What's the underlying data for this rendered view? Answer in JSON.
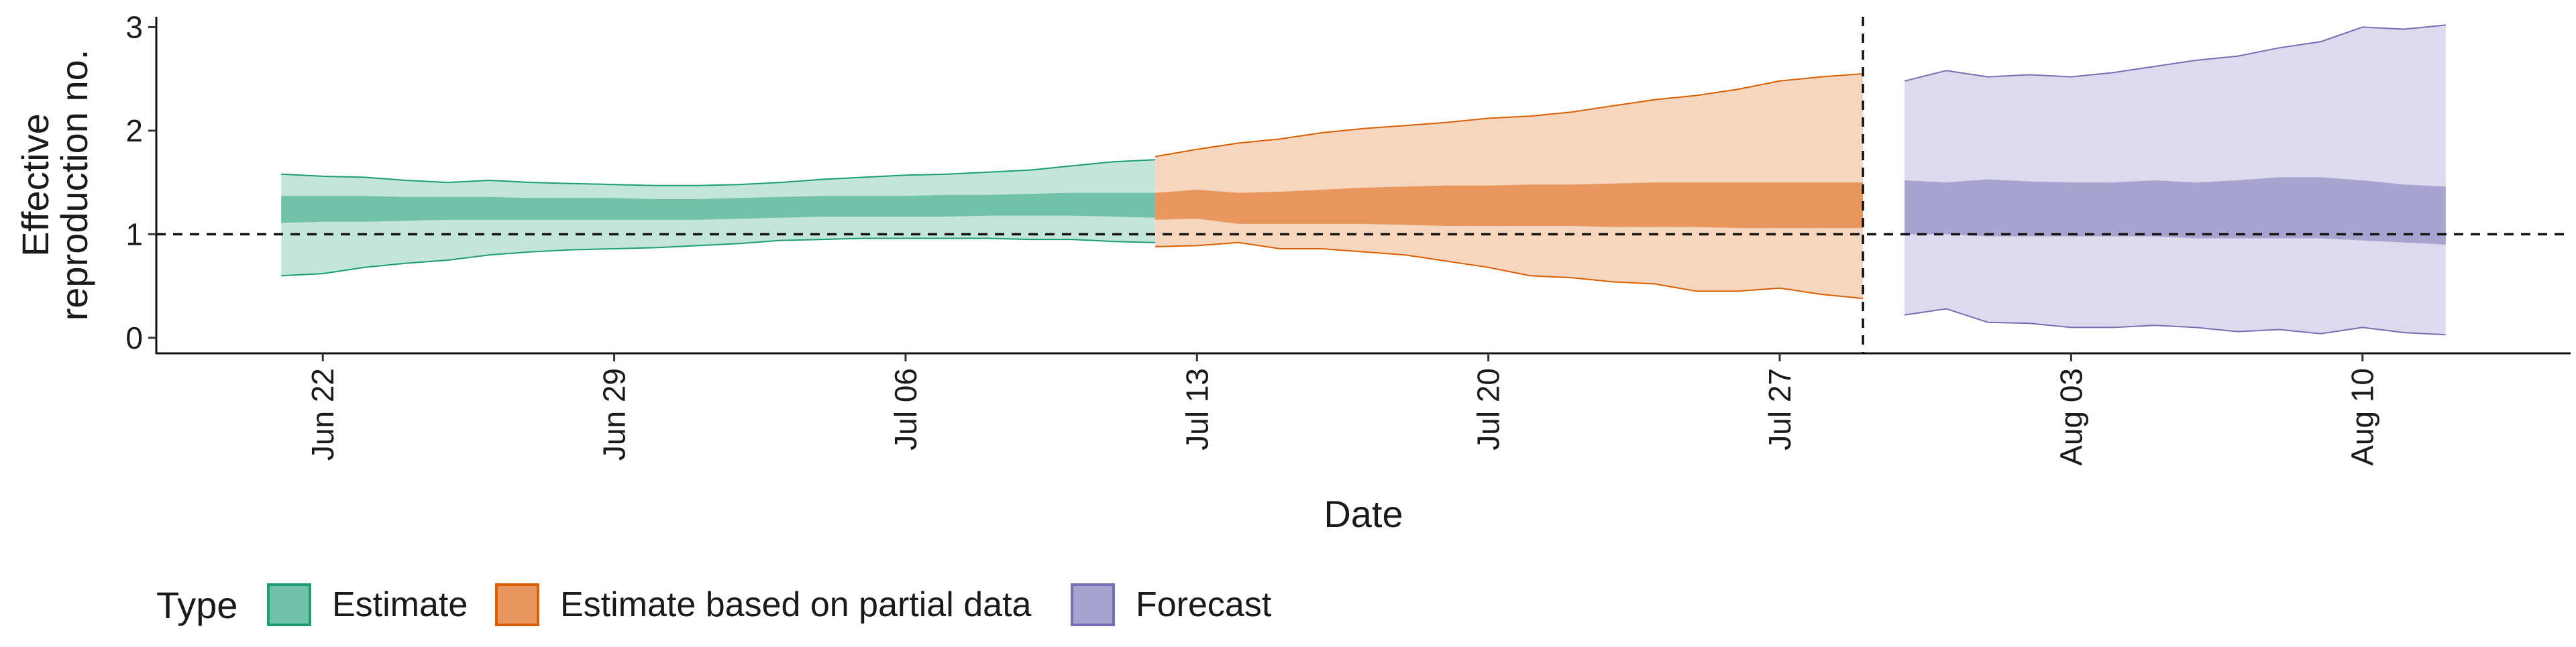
{
  "chart_data": {
    "type": "area",
    "xlabel": "Date",
    "ylabel_lines": [
      "Effective",
      "reproduction no."
    ],
    "ylim": [
      -0.15,
      3.1
    ],
    "yticks": [
      0,
      1,
      2,
      3
    ],
    "xlim": [
      "2020-06-18",
      "2020-08-15"
    ],
    "xticks": [
      "2020-06-22",
      "2020-06-29",
      "2020-07-06",
      "2020-07-13",
      "2020-07-20",
      "2020-07-27",
      "2020-08-03",
      "2020-08-10"
    ],
    "xtick_labels": [
      "Jun 22",
      "Jun 29",
      "Jul 06",
      "Jul 13",
      "Jul 20",
      "Jul 27",
      "Aug 03",
      "Aug 10"
    ],
    "reference_line_y": 1,
    "divider_date": "2020-07-29",
    "grid": false,
    "legend": {
      "title": "Type",
      "placement": "bottom-left",
      "items": [
        "Estimate",
        "Estimate based on partial data",
        "Forecast"
      ]
    },
    "series": [
      {
        "name": "Estimate",
        "color": "#1b9e77",
        "outer_fill": "#c4e5da",
        "inner_fill": "#72c2a9",
        "x": [
          "2020-06-21",
          "2020-06-22",
          "2020-06-23",
          "2020-06-24",
          "2020-06-25",
          "2020-06-26",
          "2020-06-27",
          "2020-06-28",
          "2020-06-29",
          "2020-06-30",
          "2020-07-01",
          "2020-07-02",
          "2020-07-03",
          "2020-07-04",
          "2020-07-05",
          "2020-07-06",
          "2020-07-07",
          "2020-07-08",
          "2020-07-09",
          "2020-07-10",
          "2020-07-11",
          "2020-07-12"
        ],
        "outer_low": [
          0.6,
          0.62,
          0.68,
          0.72,
          0.75,
          0.8,
          0.83,
          0.85,
          0.86,
          0.87,
          0.89,
          0.91,
          0.94,
          0.95,
          0.96,
          0.96,
          0.96,
          0.96,
          0.95,
          0.95,
          0.93,
          0.92
        ],
        "outer_high": [
          1.58,
          1.56,
          1.55,
          1.52,
          1.5,
          1.52,
          1.5,
          1.49,
          1.48,
          1.47,
          1.47,
          1.48,
          1.5,
          1.53,
          1.55,
          1.57,
          1.58,
          1.6,
          1.62,
          1.66,
          1.7,
          1.72
        ],
        "inner_low": [
          1.11,
          1.12,
          1.12,
          1.13,
          1.14,
          1.14,
          1.14,
          1.14,
          1.14,
          1.14,
          1.14,
          1.15,
          1.16,
          1.17,
          1.17,
          1.17,
          1.17,
          1.18,
          1.18,
          1.18,
          1.17,
          1.16
        ],
        "inner_high": [
          1.37,
          1.37,
          1.37,
          1.36,
          1.36,
          1.36,
          1.35,
          1.35,
          1.35,
          1.34,
          1.34,
          1.35,
          1.36,
          1.37,
          1.37,
          1.37,
          1.38,
          1.38,
          1.39,
          1.4,
          1.4,
          1.4
        ]
      },
      {
        "name": "Estimate based on partial data",
        "color": "#d95f02",
        "outer_fill": "#f6d6bf",
        "inner_fill": "#e8985f",
        "x": [
          "2020-07-12",
          "2020-07-13",
          "2020-07-14",
          "2020-07-15",
          "2020-07-16",
          "2020-07-17",
          "2020-07-18",
          "2020-07-19",
          "2020-07-20",
          "2020-07-21",
          "2020-07-22",
          "2020-07-23",
          "2020-07-24",
          "2020-07-25",
          "2020-07-26",
          "2020-07-27",
          "2020-07-28",
          "2020-07-29"
        ],
        "outer_low": [
          0.88,
          0.89,
          0.92,
          0.86,
          0.86,
          0.83,
          0.8,
          0.74,
          0.68,
          0.6,
          0.58,
          0.54,
          0.52,
          0.45,
          0.45,
          0.48,
          0.42,
          0.38
        ],
        "outer_high": [
          1.75,
          1.82,
          1.88,
          1.92,
          1.98,
          2.02,
          2.05,
          2.08,
          2.12,
          2.14,
          2.18,
          2.24,
          2.3,
          2.34,
          2.4,
          2.48,
          2.52,
          2.55
        ],
        "inner_low": [
          1.14,
          1.15,
          1.1,
          1.1,
          1.1,
          1.1,
          1.09,
          1.08,
          1.08,
          1.08,
          1.08,
          1.07,
          1.07,
          1.07,
          1.06,
          1.06,
          1.06,
          1.06
        ],
        "inner_high": [
          1.4,
          1.43,
          1.4,
          1.41,
          1.43,
          1.45,
          1.46,
          1.47,
          1.47,
          1.48,
          1.48,
          1.49,
          1.5,
          1.5,
          1.5,
          1.5,
          1.5,
          1.5
        ]
      },
      {
        "name": "Forecast",
        "color": "#7570b3",
        "outer_fill": "#dcdaec",
        "inner_fill": "#a8a4d0",
        "x": [
          "2020-07-30",
          "2020-07-31",
          "2020-08-01",
          "2020-08-02",
          "2020-08-03",
          "2020-08-04",
          "2020-08-05",
          "2020-08-06",
          "2020-08-07",
          "2020-08-08",
          "2020-08-09",
          "2020-08-10",
          "2020-08-11",
          "2020-08-12"
        ],
        "outer_low": [
          0.22,
          0.28,
          0.15,
          0.14,
          0.1,
          0.1,
          0.12,
          0.1,
          0.06,
          0.08,
          0.04,
          0.1,
          0.05,
          0.03
        ],
        "outer_high": [
          2.48,
          2.58,
          2.52,
          2.54,
          2.52,
          2.56,
          2.62,
          2.68,
          2.72,
          2.8,
          2.86,
          3.0,
          2.98,
          3.02
        ],
        "inner_low": [
          1.0,
          1.0,
          0.98,
          0.98,
          0.98,
          0.98,
          0.98,
          0.96,
          0.96,
          0.96,
          0.96,
          0.94,
          0.92,
          0.9
        ],
        "inner_high": [
          1.52,
          1.5,
          1.53,
          1.51,
          1.5,
          1.5,
          1.52,
          1.5,
          1.52,
          1.55,
          1.55,
          1.52,
          1.48,
          1.46
        ]
      }
    ]
  }
}
